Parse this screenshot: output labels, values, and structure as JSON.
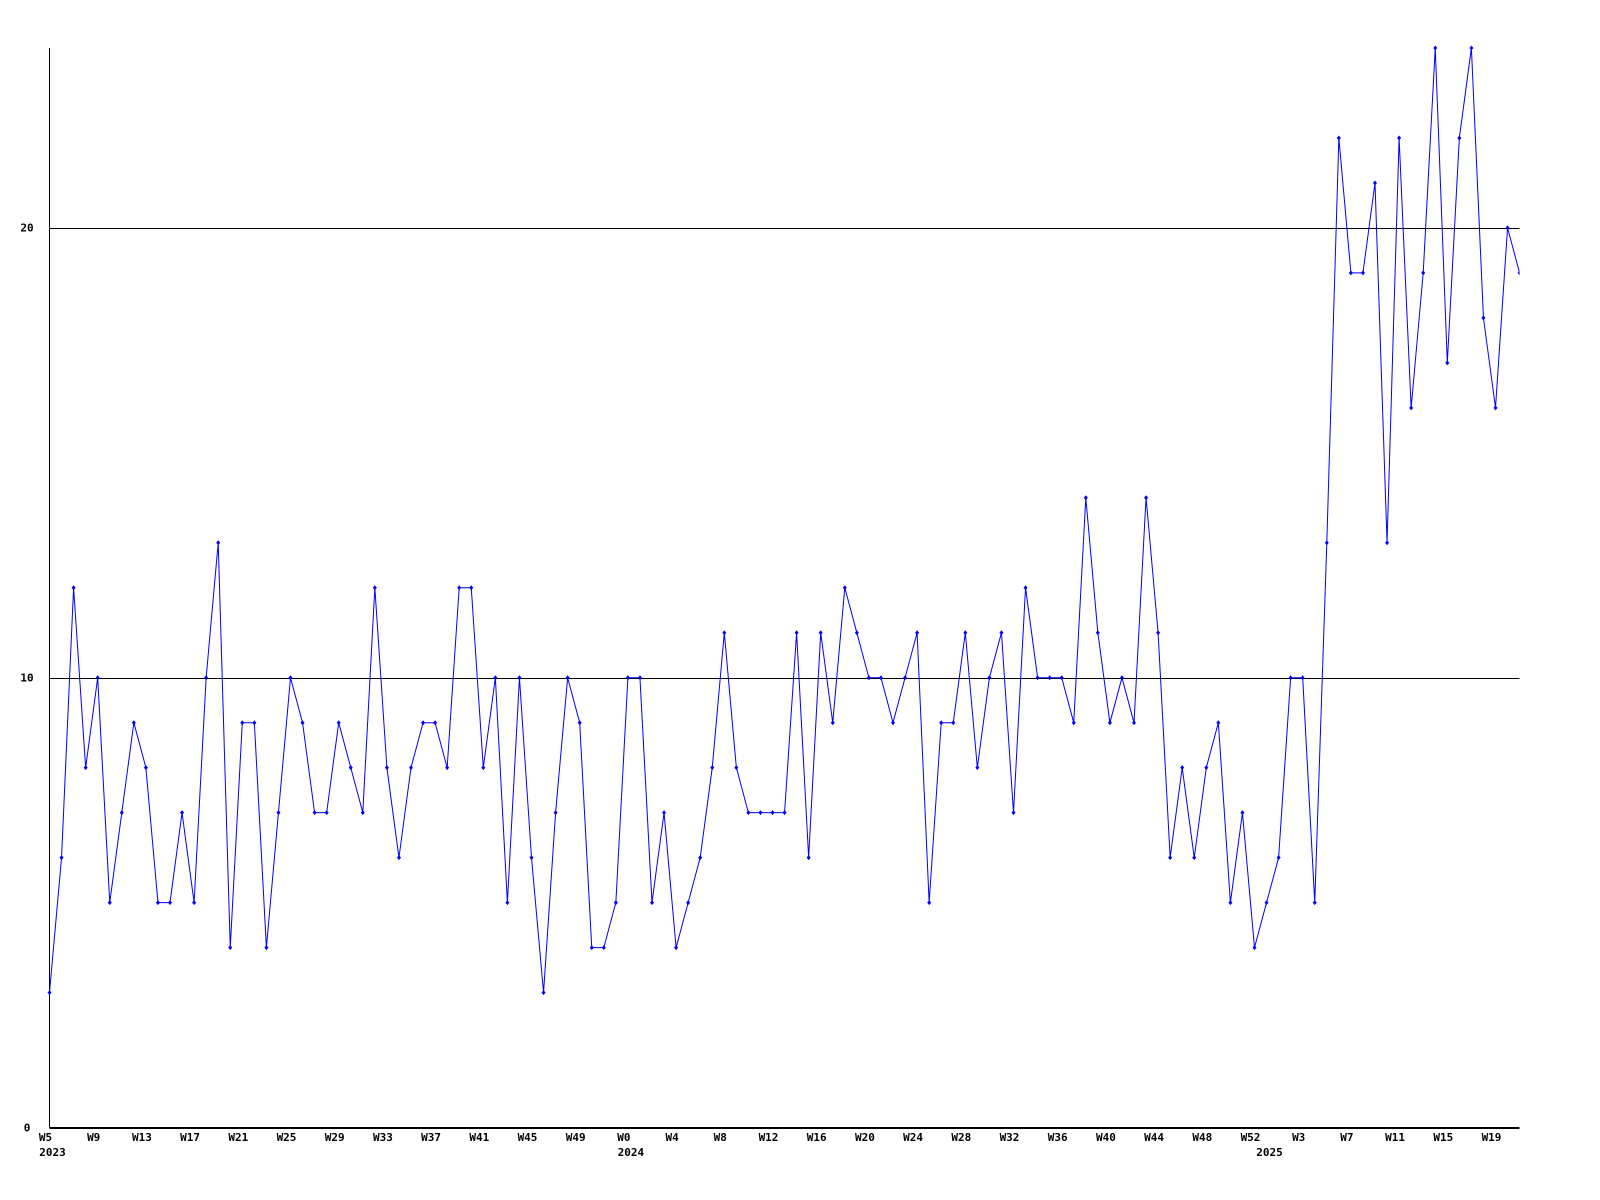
{
  "chart_data": {
    "type": "line",
    "color": "#0000ff",
    "grid": true,
    "ylim": [
      0,
      24
    ],
    "yticks": [
      0,
      10,
      20
    ],
    "categories": [
      "W5",
      null,
      null,
      null,
      "W9",
      null,
      null,
      null,
      "W13",
      null,
      null,
      null,
      "W17",
      null,
      null,
      null,
      "W21",
      null,
      null,
      null,
      "W25",
      null,
      null,
      null,
      "W29",
      null,
      null,
      null,
      "W33",
      null,
      null,
      null,
      "W37",
      null,
      null,
      null,
      "W41",
      null,
      null,
      null,
      "W45",
      null,
      null,
      null,
      "W49",
      null,
      null,
      null,
      "W0",
      null,
      null,
      null,
      "W4",
      null,
      null,
      null,
      "W8",
      null,
      null,
      null,
      "W12",
      null,
      null,
      null,
      "W16",
      null,
      null,
      null,
      "W20",
      null,
      null,
      null,
      "W24",
      null,
      null,
      null,
      "W28",
      null,
      null,
      null,
      "W32",
      null,
      null,
      null,
      "W36",
      null,
      null,
      null,
      "W40",
      null,
      null,
      null,
      "W44",
      null,
      null,
      null,
      "W48",
      null,
      null,
      null,
      "W52",
      null,
      null,
      null,
      "W3",
      null,
      null,
      null,
      "W7",
      null,
      null,
      null,
      "W11",
      null,
      null,
      null,
      "W15",
      null,
      null,
      null,
      "W19",
      null,
      null
    ],
    "category_years": [
      "2023",
      null,
      null,
      null,
      null,
      null,
      null,
      null,
      null,
      null,
      null,
      null,
      null,
      null,
      null,
      null,
      null,
      null,
      null,
      null,
      null,
      null,
      null,
      null,
      null,
      null,
      null,
      null,
      null,
      null,
      null,
      null,
      null,
      null,
      null,
      null,
      null,
      null,
      null,
      null,
      null,
      null,
      null,
      null,
      null,
      null,
      null,
      null,
      "2024",
      null,
      null,
      null,
      null,
      null,
      null,
      null,
      null,
      null,
      null,
      null,
      null,
      null,
      null,
      null,
      null,
      null,
      null,
      null,
      null,
      null,
      null,
      null,
      null,
      null,
      null,
      null,
      null,
      null,
      null,
      null,
      null,
      null,
      null,
      null,
      null,
      null,
      null,
      null,
      null,
      null,
      null,
      null,
      null,
      null,
      null,
      null,
      null,
      null,
      null,
      null,
      null,
      "2025",
      null,
      null,
      null,
      null,
      null,
      null,
      null,
      null,
      null,
      null,
      null,
      null,
      null,
      null,
      null,
      null,
      null,
      null,
      null,
      null,
      null
    ],
    "values": [
      3,
      6,
      12,
      8,
      10,
      5,
      7,
      9,
      8,
      5,
      5,
      7,
      5,
      10,
      13,
      4,
      9,
      9,
      4,
      7,
      10,
      9,
      7,
      7,
      9,
      8,
      7,
      12,
      8,
      6,
      8,
      9,
      9,
      8,
      12,
      12,
      8,
      10,
      5,
      10,
      6,
      3,
      7,
      10,
      9,
      4,
      4,
      5,
      10,
      10,
      5,
      7,
      4,
      5,
      6,
      8,
      11,
      8,
      7,
      7,
      7,
      7,
      11,
      6,
      11,
      9,
      12,
      11,
      10,
      10,
      9,
      10,
      11,
      5,
      9,
      9,
      11,
      8,
      10,
      11,
      7,
      12,
      10,
      10,
      10,
      9,
      14,
      11,
      9,
      10,
      9,
      14,
      11,
      6,
      8,
      6,
      8,
      9,
      5,
      7,
      4,
      5,
      6,
      10,
      10,
      5,
      13,
      22,
      19,
      19,
      21,
      13,
      22,
      16,
      19,
      24,
      17,
      22,
      24,
      18,
      16,
      20,
      19
    ]
  }
}
